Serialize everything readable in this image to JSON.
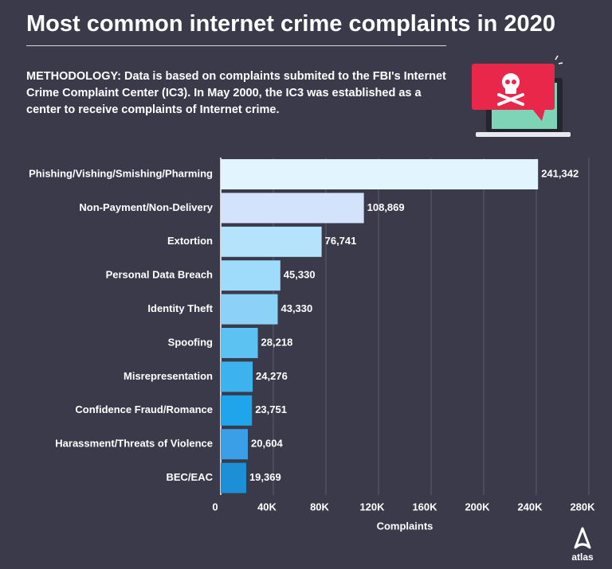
{
  "chart_data": {
    "type": "bar",
    "orientation": "horizontal",
    "title": "Most common internet crime complaints in 2020",
    "subtitle": "METHODOLOGY: Data is based on complaints submited to the FBI's Internet Crime Complaint Center (IC3). In May 2000, the IC3 was established as a center to receive complaints of Internet crime.",
    "categories": [
      "Phishing/Vishing/Smishing/Pharming",
      "Non-Payment/Non-Delivery",
      "Extortion",
      "Personal Data Breach",
      "Identity Theft",
      "Spoofing",
      "Misrepresentation",
      "Confidence Fraud/Romance",
      "Harassment/Threats of Violence",
      "BEC/EAC"
    ],
    "values": [
      241342,
      108869,
      76741,
      45330,
      43330,
      28218,
      24276,
      23751,
      20604,
      19369
    ],
    "value_labels": [
      "241,342",
      "108,869",
      "76,741",
      "45,330",
      "43,330",
      "28,218",
      "24,276",
      "23,751",
      "20,604",
      "19,369"
    ],
    "colors": [
      "#e2f4fd",
      "#d3e3fb",
      "#b5e3fb",
      "#9fdbfa",
      "#8cd2f8",
      "#5cc2f2",
      "#3cb3ee",
      "#1ea5ec",
      "#3b9fe8",
      "#1d8fd6"
    ],
    "xlabel": "Complaints",
    "xlim": [
      0,
      280000
    ],
    "xticks": [
      0,
      {
        "value": 40000,
        "label": "40K"
      },
      {
        "value": 80000,
        "label": "80K"
      },
      {
        "value": 120000,
        "label": "120K"
      },
      {
        "value": 160000,
        "label": "160K"
      },
      {
        "value": 200000,
        "label": "200K"
      },
      {
        "value": 240000,
        "label": "240K"
      },
      {
        "value": 280000,
        "label": "280K"
      }
    ],
    "grid": true,
    "source": "atlas"
  }
}
